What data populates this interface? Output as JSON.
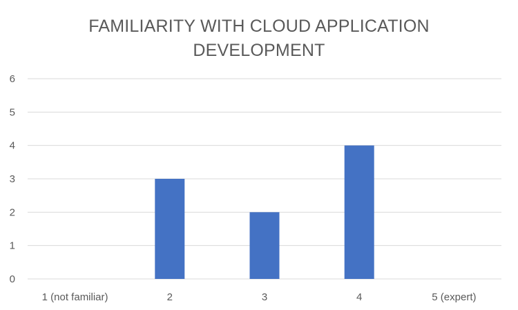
{
  "chart_data": {
    "type": "bar",
    "title_lines": [
      "FAMILIARITY WITH CLOUD APPLICATION",
      "DEVELOPMENT"
    ],
    "categories": [
      "1 (not familiar)",
      "2",
      "3",
      "4",
      "5 (expert)"
    ],
    "values": [
      0,
      3,
      2,
      4,
      0
    ],
    "ylim": [
      0,
      6
    ],
    "yticks": [
      0,
      1,
      2,
      3,
      4,
      5,
      6
    ],
    "grid": true,
    "legend": "none",
    "bar_color": "#4472c4",
    "xlabel": "",
    "ylabel": ""
  }
}
